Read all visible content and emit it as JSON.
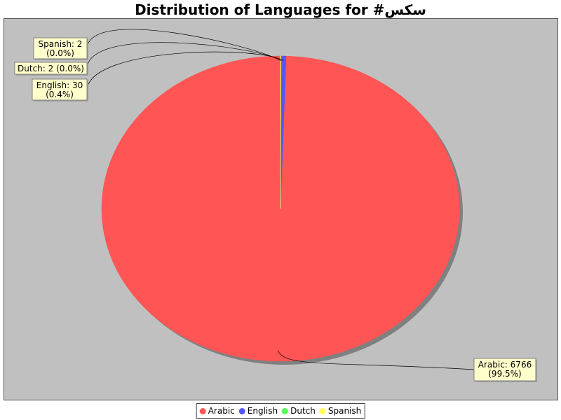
{
  "chart_data": {
    "type": "pie",
    "title": "Distribution of Languages for #سكس",
    "categories": [
      "Arabic",
      "English",
      "Dutch",
      "Spanish"
    ],
    "values": [
      6766,
      30,
      2,
      2
    ],
    "slice_labels": [
      {
        "line1": "Arabic: 6766",
        "line2": "(99.5%)"
      },
      {
        "line1": "English: 30",
        "line2": "(0.4%)"
      },
      {
        "line1": "Dutch: 2 (0.0%)",
        "line2": ""
      },
      {
        "line1": "Spanish: 2",
        "line2": "(0.0%)"
      }
    ],
    "colors": [
      "#ff5555",
      "#5555ff",
      "#55ff55",
      "#ffff55"
    ],
    "legend": {
      "placement": "bottom",
      "entries": [
        "Arabic",
        "English",
        "Dutch",
        "Spanish"
      ]
    }
  },
  "colors": {
    "plot_background": "#c0c0c0",
    "label_background": "#ffffcc"
  }
}
